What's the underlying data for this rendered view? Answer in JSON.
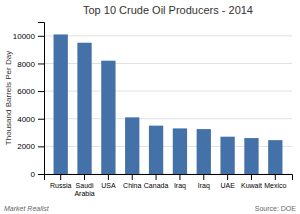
{
  "chart_data": {
    "type": "bar",
    "title": "Top 10 Crude Oil Producers - 2014",
    "ylabel": "Thousand Barrels Per Day",
    "annotations": [
      "Source: DOE",
      "Market Realist"
    ],
    "categories": [
      "Russia",
      "Saudi\nArabia",
      "USA",
      "China",
      "Canada",
      "Iraq",
      "Iraq",
      "UAE",
      "Kuwait",
      "Mexico"
    ],
    "values": [
      10100,
      9500,
      8200,
      4100,
      3500,
      3300,
      3250,
      2700,
      2600,
      2450
    ],
    "color": "#4472a8",
    "ylim": [
      0,
      11000
    ],
    "yticks": [
      0,
      2000,
      4000,
      6000,
      8000,
      10000
    ],
    "grid": true
  }
}
